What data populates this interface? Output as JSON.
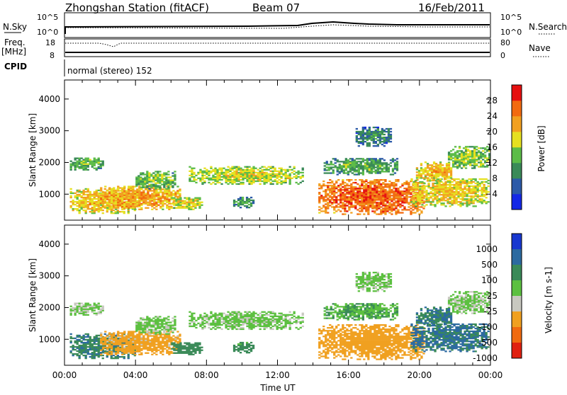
{
  "header": {
    "station": "Zhongshan Station (fitACF)",
    "beam": "Beam 07",
    "date": "16/Feb/2011"
  },
  "top_strip": {
    "left_label": "N.Sky",
    "left_ticks": [
      "10^5",
      "10^0"
    ],
    "right_label": "N.Search",
    "right_ticks": [
      "10^5",
      "10^0"
    ]
  },
  "freq_strip": {
    "left_label_1": "Freq.",
    "left_label_2": "[MHz]",
    "left_ticks": [
      "18",
      "8"
    ],
    "right_label": "Nave",
    "right_ticks": [
      "80",
      "0"
    ],
    "cpid_label": "CPID",
    "cpid_value": "normal (stereo) 152"
  },
  "chart_data": [
    {
      "type": "heatmap",
      "name": "power",
      "ylabel": "Slant Range [km]",
      "xlabel": "",
      "ylim": [
        180,
        4600
      ],
      "yticks": [
        "1000",
        "2000",
        "3000",
        "4000"
      ],
      "xlim": [
        0,
        24
      ],
      "colorbar": {
        "label": "Power [dB]",
        "ticks": [
          "4",
          "8",
          "12",
          "16",
          "20",
          "24",
          "28"
        ],
        "colors": [
          "#1428e6",
          "#2c5aa8",
          "#3a8a58",
          "#5cbc48",
          "#e6e020",
          "#f2a020",
          "#f26a10",
          "#e61010"
        ]
      }
    },
    {
      "type": "heatmap",
      "name": "velocity",
      "ylabel": "Slant Range [km]",
      "xlabel": "Time UT",
      "ylim": [
        180,
        4600
      ],
      "yticks": [
        "1000",
        "2000",
        "3000",
        "4000"
      ],
      "xlim": [
        0,
        24
      ],
      "xticks": [
        "00:00",
        "04:00",
        "08:00",
        "12:00",
        "16:00",
        "20:00",
        "00:00"
      ],
      "colorbar": {
        "label": "Velocity [m s-1]",
        "ticks": [
          "1000",
          "500",
          "100",
          "25",
          "-25",
          "-100",
          "-500",
          "-1000"
        ],
        "colors": [
          "#1838d0",
          "#2c6aa0",
          "#3a8a58",
          "#5cc040",
          "#c8c8c0",
          "#f0a020",
          "#f06a10",
          "#e02010"
        ]
      }
    }
  ],
  "echo_regions": [
    {
      "t0": 0.3,
      "t1": 2.2,
      "r0": 1750,
      "r1": 2150,
      "p": 10,
      "v": -20
    },
    {
      "t0": 0.3,
      "t1": 4.0,
      "r0": 380,
      "r1": 1150,
      "p": 17,
      "v": 80
    },
    {
      "t0": 2.0,
      "t1": 6.5,
      "r0": 500,
      "r1": 1250,
      "p": 19,
      "v": -180
    },
    {
      "t0": 4.0,
      "t1": 6.2,
      "r0": 1150,
      "r1": 1700,
      "p": 11,
      "v": -10
    },
    {
      "t0": 6.0,
      "t1": 7.8,
      "r0": 500,
      "r1": 900,
      "p": 15,
      "v": 60
    },
    {
      "t0": 7.0,
      "t1": 13.4,
      "r0": 1300,
      "r1": 1850,
      "p": 14,
      "v": -10
    },
    {
      "t0": 9.5,
      "t1": 10.6,
      "r0": 560,
      "r1": 900,
      "p": 8,
      "v": 50
    },
    {
      "t0": 14.3,
      "t1": 20.2,
      "r0": 350,
      "r1": 1450,
      "p": 23,
      "v": -250
    },
    {
      "t0": 14.6,
      "t1": 18.8,
      "r0": 1600,
      "r1": 2100,
      "p": 9,
      "v": 20
    },
    {
      "t0": 16.4,
      "t1": 18.4,
      "r0": 2500,
      "r1": 3100,
      "p": 6,
      "v": -10
    },
    {
      "t0": 19.5,
      "t1": 23.9,
      "r0": 600,
      "r1": 1500,
      "p": 16,
      "v": 120
    },
    {
      "t0": 21.6,
      "t1": 23.9,
      "r0": 1800,
      "r1": 2500,
      "p": 12,
      "v": -15
    },
    {
      "t0": 19.8,
      "t1": 21.8,
      "r0": 1400,
      "r1": 2000,
      "p": 17,
      "v": 90
    }
  ]
}
